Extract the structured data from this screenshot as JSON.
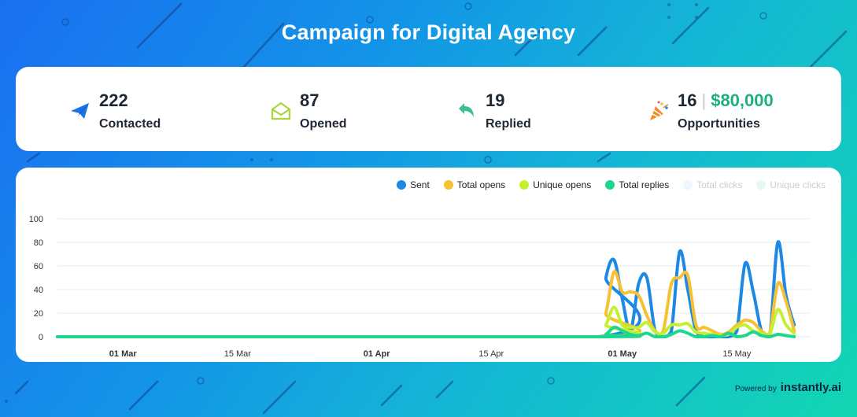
{
  "title": "Campaign for Digital Agency",
  "stats": {
    "contacted": {
      "value": "222",
      "label": "Contacted",
      "icon": "paper-plane-icon",
      "color": "#1a73e8"
    },
    "opened": {
      "value": "87",
      "label": "Opened",
      "icon": "open-envelope-icon",
      "color": "#a6d63a"
    },
    "replied": {
      "value": "19",
      "label": "Replied",
      "icon": "reply-arrow-icon",
      "color": "#3cc08c"
    },
    "opportunities": {
      "count": "16",
      "separator": "|",
      "amount": "$80,000",
      "label": "Opportunities",
      "icon": "party-popper-icon",
      "color": "#f08c2a"
    }
  },
  "footer": {
    "powered_by": "Powered by",
    "brand": "instantly.ai"
  },
  "chart_data": {
    "type": "line",
    "legend": [
      {
        "name": "Sent",
        "color": "#1e88e5",
        "active": true
      },
      {
        "name": "Total opens",
        "color": "#f6c132",
        "active": true
      },
      {
        "name": "Unique opens",
        "color": "#c4f032",
        "active": true
      },
      {
        "name": "Total replies",
        "color": "#1ed68e",
        "active": true
      },
      {
        "name": "Total clicks",
        "color": "#eef6ff",
        "active": false
      },
      {
        "name": "Unique clicks",
        "color": "#e8f8f1",
        "active": false
      }
    ],
    "x_range": [
      "2024-02-22",
      "2024-05-24"
    ],
    "x_ticks": [
      {
        "label": "01 Mar",
        "date": "2024-03-01",
        "bold": true
      },
      {
        "label": "15 Mar",
        "date": "2024-03-15",
        "bold": false
      },
      {
        "label": "01 Apr",
        "date": "2024-04-01",
        "bold": true
      },
      {
        "label": "15 Apr",
        "date": "2024-04-15",
        "bold": false
      },
      {
        "label": "01 May",
        "date": "2024-05-01",
        "bold": true
      },
      {
        "label": "15 May",
        "date": "2024-05-15",
        "bold": false
      }
    ],
    "y_ticks": [
      "0",
      "20",
      "40",
      "60",
      "80",
      "100"
    ],
    "ylim": [
      0,
      100
    ],
    "baseline_start": "2024-02-22",
    "series": [
      {
        "name": "Sent",
        "color": "#1e88e5",
        "points": [
          [
            "2024-04-28",
            0
          ],
          [
            "2024-04-29",
            50
          ],
          [
            "2024-04-30",
            65
          ],
          [
            "2024-05-01",
            32
          ],
          [
            "2024-05-02",
            5
          ],
          [
            "2024-05-03",
            45
          ],
          [
            "2024-05-04",
            50
          ],
          [
            "2024-05-05",
            5
          ],
          [
            "2024-05-06",
            0
          ],
          [
            "2024-05-07",
            5
          ],
          [
            "2024-05-08",
            72
          ],
          [
            "2024-05-09",
            40
          ],
          [
            "2024-05-10",
            5
          ],
          [
            "2024-05-11",
            0
          ],
          [
            "2024-05-12",
            0
          ],
          [
            "2024-05-13",
            0
          ],
          [
            "2024-05-14",
            0
          ],
          [
            "2024-05-15",
            5
          ],
          [
            "2024-05-16",
            62
          ],
          [
            "2024-05-17",
            38
          ],
          [
            "2024-05-18",
            5
          ],
          [
            "2024-05-19",
            0
          ],
          [
            "2024-05-20",
            80
          ],
          [
            "2024-05-21",
            35
          ],
          [
            "2024-05-22",
            10
          ]
        ]
      },
      {
        "name": "Total opens",
        "color": "#f6c132",
        "points": [
          [
            "2024-04-28",
            0
          ],
          [
            "2024-04-29",
            20
          ],
          [
            "2024-04-30",
            55
          ],
          [
            "2024-05-01",
            38
          ],
          [
            "2024-05-02",
            38
          ],
          [
            "2024-05-03",
            35
          ],
          [
            "2024-05-04",
            18
          ],
          [
            "2024-05-05",
            5
          ],
          [
            "2024-05-06",
            5
          ],
          [
            "2024-05-07",
            45
          ],
          [
            "2024-05-08",
            50
          ],
          [
            "2024-05-09",
            52
          ],
          [
            "2024-05-10",
            10
          ],
          [
            "2024-05-11",
            8
          ],
          [
            "2024-05-12",
            5
          ],
          [
            "2024-05-13",
            2
          ],
          [
            "2024-05-14",
            4
          ],
          [
            "2024-05-15",
            10
          ],
          [
            "2024-05-16",
            14
          ],
          [
            "2024-05-17",
            12
          ],
          [
            "2024-05-18",
            5
          ],
          [
            "2024-05-19",
            3
          ],
          [
            "2024-05-20",
            45
          ],
          [
            "2024-05-21",
            30
          ],
          [
            "2024-05-22",
            5
          ]
        ]
      },
      {
        "name": "Unique opens",
        "color": "#c4f032",
        "points": [
          [
            "2024-04-28",
            0
          ],
          [
            "2024-04-29",
            10
          ],
          [
            "2024-04-30",
            25
          ],
          [
            "2024-05-01",
            10
          ],
          [
            "2024-05-02",
            8
          ],
          [
            "2024-05-03",
            8
          ],
          [
            "2024-05-04",
            12
          ],
          [
            "2024-05-05",
            4
          ],
          [
            "2024-05-06",
            3
          ],
          [
            "2024-05-07",
            10
          ],
          [
            "2024-05-08",
            10
          ],
          [
            "2024-05-09",
            11
          ],
          [
            "2024-05-10",
            4
          ],
          [
            "2024-05-11",
            3
          ],
          [
            "2024-05-12",
            2
          ],
          [
            "2024-05-13",
            1
          ],
          [
            "2024-05-14",
            2
          ],
          [
            "2024-05-15",
            8
          ],
          [
            "2024-05-16",
            10
          ],
          [
            "2024-05-17",
            5
          ],
          [
            "2024-05-18",
            3
          ],
          [
            "2024-05-19",
            2
          ],
          [
            "2024-05-20",
            23
          ],
          [
            "2024-05-21",
            10
          ],
          [
            "2024-05-22",
            3
          ]
        ]
      },
      {
        "name": "Total replies",
        "color": "#1ed68e",
        "points": [
          [
            "2024-04-28",
            0
          ],
          [
            "2024-04-29",
            2
          ],
          [
            "2024-04-30",
            8
          ],
          [
            "2024-05-01",
            5
          ],
          [
            "2024-05-02",
            2
          ],
          [
            "2024-05-03",
            1
          ],
          [
            "2024-05-04",
            3
          ],
          [
            "2024-05-05",
            0
          ],
          [
            "2024-05-06",
            0
          ],
          [
            "2024-05-07",
            2
          ],
          [
            "2024-05-08",
            5
          ],
          [
            "2024-05-09",
            3
          ],
          [
            "2024-05-10",
            0
          ],
          [
            "2024-05-11",
            0
          ],
          [
            "2024-05-12",
            1
          ],
          [
            "2024-05-13",
            0
          ],
          [
            "2024-05-14",
            3
          ],
          [
            "2024-05-15",
            0
          ],
          [
            "2024-05-16",
            1
          ],
          [
            "2024-05-17",
            4
          ],
          [
            "2024-05-18",
            1
          ],
          [
            "2024-05-19",
            0
          ],
          [
            "2024-05-20",
            2
          ],
          [
            "2024-05-21",
            1
          ],
          [
            "2024-05-22",
            0
          ]
        ]
      }
    ]
  }
}
